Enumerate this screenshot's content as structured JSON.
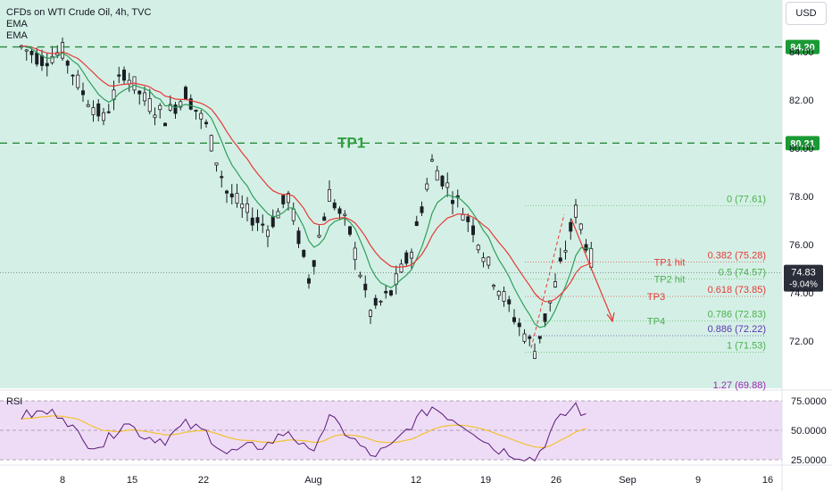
{
  "header": {
    "title": "CFDs on WTI Crude Oil, 4h, TVC",
    "indicators": [
      "EMA",
      "EMA"
    ],
    "currency": "USD"
  },
  "rsi_label": "RSI",
  "annotations": {
    "tp1": "TP1",
    "tp1_hit": "TP1 hit",
    "tp2_hit": "TP2 hit",
    "tp3": "TP3",
    "tp4": "TP4"
  },
  "price_badges": [
    {
      "label": "84.20",
      "value": 84.2,
      "color": "#1a9a34"
    },
    {
      "label": "80.21",
      "value": 80.21,
      "color": "#1a9a34"
    }
  ],
  "last_price": {
    "label": "74.83",
    "change": "-9.04%",
    "value": 74.83
  },
  "fib_levels": [
    {
      "label": "0 (77.61)",
      "value": 77.61,
      "color": "#4caf50"
    },
    {
      "label": "0.382 (75.28)",
      "value": 75.28,
      "color": "#e53935"
    },
    {
      "label": "0.5 (74.57)",
      "value": 74.57,
      "color": "#4caf50"
    },
    {
      "label": "0.618 (73.85)",
      "value": 73.85,
      "color": "#e53935"
    },
    {
      "label": "0.786 (72.83)",
      "value": 72.83,
      "color": "#4caf50"
    },
    {
      "label": "0.886 (72.22)",
      "value": 72.22,
      "color": "#5e35b1"
    },
    {
      "label": "1 (71.53)",
      "value": 71.53,
      "color": "#4caf50"
    },
    {
      "label": "1.27 (69.88)",
      "value": 69.88,
      "color": "#9c27b0"
    }
  ],
  "colors": {
    "bg": "#d4f0e6",
    "candle": "#1b1e24",
    "ema_fast": "#2e9e5b",
    "ema_slow": "#e53935",
    "rsi_line": "#5a1a7a",
    "rsi_ma": "#f2c230",
    "rsi_bg": "#eedcf6",
    "dash_green": "#2a8a3e"
  },
  "chart_data": [
    {
      "type": "candlestick",
      "title": "CFDs on WTI Crude Oil, 4h, TVC",
      "x_tick_labels": [
        "8",
        "15",
        "22",
        "Aug",
        "12",
        "19",
        "26",
        "Sep",
        "9",
        "16"
      ],
      "y_tick_labels": [
        "84.00",
        "82.00",
        "80.00",
        "78.00",
        "76.00",
        "74.00",
        "72.00"
      ],
      "ylim": [
        70,
        85.2
      ],
      "series": [
        {
          "name": "Close",
          "x": [
            "Jul 3",
            "Jul 5",
            "Jul 7",
            "Jul 9",
            "Jul 11",
            "Jul 13",
            "Jul 15",
            "Jul 17",
            "Jul 19",
            "Jul 21",
            "Jul 23",
            "Jul 25",
            "Jul 27",
            "Jul 29",
            "Jul 31",
            "Aug 2",
            "Aug 4",
            "Aug 6",
            "Aug 8",
            "Aug 10",
            "Aug 12",
            "Aug 14",
            "Aug 16",
            "Aug 18",
            "Aug 20",
            "Aug 22",
            "Aug 24",
            "Aug 26",
            "Aug 28"
          ],
          "values": [
            84.2,
            83.7,
            84.0,
            82.3,
            81.2,
            83.2,
            82.0,
            81.3,
            82.3,
            80.9,
            78.2,
            77.3,
            76.7,
            78.0,
            74.6,
            78.1,
            76.5,
            73.2,
            74.0,
            75.8,
            79.4,
            78.1,
            76.7,
            74.6,
            73.0,
            71.6,
            74.3,
            77.4,
            74.8
          ]
        }
      ],
      "annotations": [
        "TP1",
        "TP1 hit",
        "TP2 hit",
        "TP3",
        "TP4"
      ]
    },
    {
      "type": "line",
      "title": "RSI",
      "y_tick_labels": [
        "75.0000",
        "50.0000",
        "25.0000"
      ],
      "ylim": [
        22,
        80
      ],
      "series": [
        {
          "name": "RSI",
          "x": [
            "Jul 3",
            "Jul 5",
            "Jul 7",
            "Jul 9",
            "Jul 11",
            "Jul 13",
            "Jul 15",
            "Jul 17",
            "Jul 19",
            "Jul 21",
            "Jul 23",
            "Jul 25",
            "Jul 27",
            "Jul 29",
            "Jul 31",
            "Aug 2",
            "Aug 4",
            "Aug 6",
            "Aug 8",
            "Aug 10",
            "Aug 12",
            "Aug 14",
            "Aug 16",
            "Aug 18",
            "Aug 20",
            "Aug 22",
            "Aug 24",
            "Aug 26",
            "Aug 28"
          ],
          "values": [
            62,
            65,
            64,
            40,
            38,
            58,
            45,
            42,
            55,
            48,
            30,
            35,
            38,
            50,
            30,
            60,
            45,
            28,
            35,
            55,
            70,
            60,
            50,
            35,
            30,
            25,
            55,
            72,
            48
          ]
        }
      ]
    }
  ]
}
